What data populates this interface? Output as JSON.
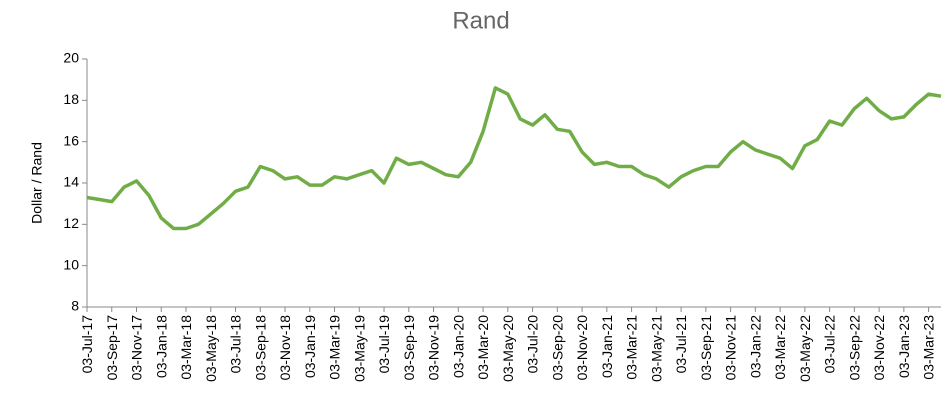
{
  "chart_data": {
    "type": "line",
    "title": "Rand",
    "y_label": "Dollar / Rand",
    "categories": [
      "03-Jul-17",
      null,
      "03-Sep-17",
      null,
      "03-Nov-17",
      null,
      "03-Jan-18",
      null,
      "03-Mar-18",
      null,
      "03-May-18",
      null,
      "03-Jul-18",
      null,
      "03-Sep-18",
      null,
      "03-Nov-18",
      null,
      "03-Jan-19",
      null,
      "03-Mar-19",
      null,
      "03-May-19",
      null,
      "03-Jul-19",
      null,
      "03-Sep-19",
      null,
      "03-Nov-19",
      null,
      "03-Jan-20",
      null,
      "03-Mar-20",
      null,
      "03-May-20",
      null,
      "03-Jul-20",
      null,
      "03-Sep-20",
      null,
      "03-Nov-20",
      null,
      "03-Jan-21",
      null,
      "03-Mar-21",
      null,
      "03-May-21",
      null,
      "03-Jul-21",
      null,
      "03-Sep-21",
      null,
      "03-Nov-21",
      null,
      "03-Jan-22",
      null,
      "03-Mar-22",
      null,
      "03-May-22",
      null,
      "03-Jul-22",
      null,
      "03-Sep-22",
      null,
      "03-Nov-22",
      null,
      "03-Jan-23",
      null,
      "03-Mar-23",
      null
    ],
    "series": [
      {
        "name": "Rand",
        "color": "#70ad47",
        "values": [
          13.3,
          13.2,
          13.1,
          13.8,
          14.1,
          13.4,
          12.3,
          11.8,
          11.8,
          12.0,
          12.5,
          13.0,
          13.6,
          13.8,
          14.8,
          14.6,
          14.2,
          14.3,
          13.9,
          13.9,
          14.3,
          14.2,
          14.4,
          14.6,
          14.0,
          15.2,
          14.9,
          15.0,
          14.7,
          14.4,
          14.3,
          15.0,
          16.5,
          18.6,
          18.3,
          17.1,
          16.8,
          17.3,
          16.6,
          16.5,
          15.5,
          14.9,
          15.0,
          14.8,
          14.8,
          14.4,
          14.2,
          13.8,
          14.3,
          14.6,
          14.8,
          14.8,
          15.5,
          16.0,
          15.6,
          15.4,
          15.2,
          14.7,
          15.8,
          16.1,
          17.0,
          16.8,
          17.6,
          18.1,
          17.5,
          17.1,
          17.2,
          17.8,
          18.3,
          18.2
        ]
      }
    ],
    "ylim": [
      8,
      20
    ],
    "yticks": [
      8,
      10,
      12,
      14,
      16,
      18,
      20
    ]
  }
}
